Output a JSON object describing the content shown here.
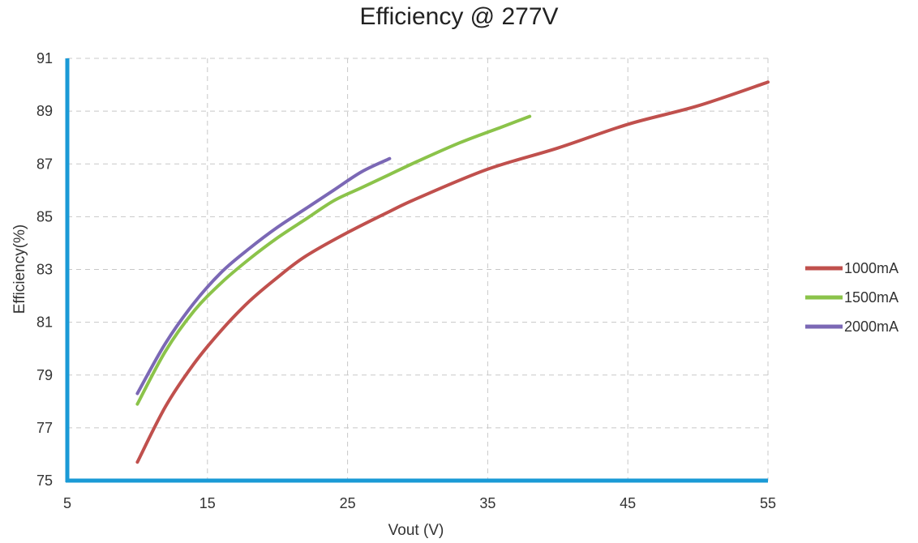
{
  "chart_data": {
    "type": "line",
    "title": "Efficiency @ 277V",
    "xlabel": "Vout (V)",
    "ylabel": "Efficiency(%)",
    "xlim": [
      5,
      55
    ],
    "ylim": [
      75,
      91
    ],
    "xticks": [
      5,
      15,
      25,
      35,
      45,
      55
    ],
    "yticks": [
      75,
      77,
      79,
      81,
      83,
      85,
      87,
      89,
      91
    ],
    "grid": true,
    "legend_position": "right",
    "axis_color": "#1a9ad6",
    "series": [
      {
        "name": "1000mA",
        "color": "#c0504d",
        "points": [
          [
            10,
            75.7
          ],
          [
            12,
            77.8
          ],
          [
            14,
            79.4
          ],
          [
            16,
            80.7
          ],
          [
            18,
            81.8
          ],
          [
            20,
            82.7
          ],
          [
            22,
            83.5
          ],
          [
            25,
            84.4
          ],
          [
            28,
            85.2
          ],
          [
            30,
            85.7
          ],
          [
            35,
            86.8
          ],
          [
            40,
            87.6
          ],
          [
            45,
            88.5
          ],
          [
            50,
            89.2
          ],
          [
            55,
            90.1
          ]
        ]
      },
      {
        "name": "1500mA",
        "color": "#8bc34a",
        "points": [
          [
            10,
            77.9
          ],
          [
            12,
            79.9
          ],
          [
            14,
            81.4
          ],
          [
            16,
            82.5
          ],
          [
            18,
            83.4
          ],
          [
            20,
            84.2
          ],
          [
            22,
            84.9
          ],
          [
            24,
            85.6
          ],
          [
            26,
            86.1
          ],
          [
            28,
            86.6
          ],
          [
            30,
            87.1
          ],
          [
            33,
            87.8
          ],
          [
            36,
            88.4
          ],
          [
            38,
            88.8
          ]
        ]
      },
      {
        "name": "2000mA",
        "color": "#7b68b5",
        "points": [
          [
            10,
            78.3
          ],
          [
            12,
            80.2
          ],
          [
            14,
            81.7
          ],
          [
            16,
            82.9
          ],
          [
            18,
            83.8
          ],
          [
            20,
            84.6
          ],
          [
            22,
            85.3
          ],
          [
            24,
            86.0
          ],
          [
            26,
            86.7
          ],
          [
            28,
            87.2
          ]
        ]
      }
    ]
  }
}
